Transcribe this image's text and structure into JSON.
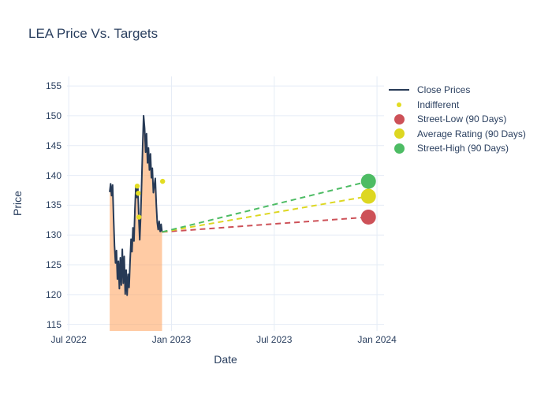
{
  "title": "LEA Price Vs. Targets",
  "colors": {
    "text": "#2a3f5f",
    "grid": "#e5ecf6",
    "close_line": "#273a56",
    "close_fill": "rgba(255,161,90,0.55)",
    "indifferent": "#e2dc22",
    "street_low": "#cd5158",
    "average_rating": "#ddd721",
    "street_high": "#4dbc64",
    "background": "#ffffff"
  },
  "chart_data": {
    "type": "line",
    "title": "LEA Price Vs. Targets",
    "xlabel": "Date",
    "ylabel": "Price",
    "x_axis": {
      "tick_positions_months": [
        0,
        6,
        12,
        18
      ],
      "tick_labels": [
        "Jul 2022",
        "Jan 2023",
        "Jul 2023",
        "Jan 2024"
      ],
      "range_months": [
        -0.1,
        18.41
      ],
      "note": "months measured from Jul 2022"
    },
    "y_axis": {
      "ticks": [
        115,
        120,
        125,
        130,
        135,
        140,
        145,
        150,
        155
      ],
      "range": [
        113.9,
        156.6
      ]
    },
    "grid": true,
    "legend_position": "right-top",
    "series": [
      {
        "name": "Close Prices",
        "type": "line",
        "fill": "tozero",
        "x": [
          2.39,
          2.447,
          2.503,
          2.56,
          2.617,
          2.673,
          2.73,
          2.787,
          2.843,
          2.9,
          2.957,
          3.013,
          3.07,
          3.127,
          3.183,
          3.24,
          3.297,
          3.353,
          3.41,
          3.467,
          3.523,
          3.58,
          3.637,
          3.693,
          3.75,
          3.807,
          3.863,
          3.92,
          3.977,
          4.033,
          4.09,
          4.147,
          4.203,
          4.26,
          4.317,
          4.373,
          4.43,
          4.487,
          4.543,
          4.6,
          4.657,
          4.713,
          4.77,
          4.827,
          4.883,
          4.94,
          4.997,
          5.053,
          5.11,
          5.167,
          5.223,
          5.28,
          5.337,
          5.393,
          5.45
        ],
        "y": [
          137.2,
          138.6,
          136.6,
          138.4,
          133.0,
          128.2,
          125.3,
          127.4,
          122.6,
          125.6,
          121.0,
          126.2,
          121.6,
          127.6,
          121.9,
          126.4,
          120.1,
          124.1,
          119.9,
          123.4,
          121.2,
          125.4,
          129.3,
          127.2,
          131.2,
          129.0,
          134.3,
          138.2,
          136.3,
          138.0,
          133.0,
          129.2,
          133.5,
          139.0,
          144.8,
          150.0,
          147.9,
          143.9,
          147.0,
          142.1,
          144.6,
          140.9,
          143.6,
          139.6,
          141.2,
          137.1,
          138.3,
          139.5,
          135.1,
          132.1,
          130.9,
          132.3,
          130.6,
          131.8,
          130.5
        ]
      },
      {
        "name": "Indifferent",
        "type": "scatter",
        "x": [
          4.0,
          4.06,
          4.1,
          5.48
        ],
        "y": [
          138.2,
          137.0,
          133.0,
          139.0
        ]
      },
      {
        "name": "Street-Low (90 Days)",
        "type": "dashed_target",
        "x": [
          5.45,
          17.5
        ],
        "y": [
          130.5,
          133.0
        ],
        "target_value": 133.0
      },
      {
        "name": "Average Rating (90 Days)",
        "type": "dashed_target",
        "x": [
          5.45,
          17.5
        ],
        "y": [
          130.5,
          136.5
        ],
        "target_value": 136.5
      },
      {
        "name": "Street-High (90 Days)",
        "type": "dashed_target",
        "x": [
          5.45,
          17.5
        ],
        "y": [
          130.5,
          139.0
        ],
        "target_value": 139.0
      }
    ],
    "legend": [
      {
        "label": "Close Prices",
        "marker": "line",
        "color_key": "close_line"
      },
      {
        "label": "Indifferent",
        "marker": "dot-small",
        "color_key": "indifferent"
      },
      {
        "label": "Street-Low (90 Days)",
        "marker": "dot-large",
        "color_key": "street_low"
      },
      {
        "label": "Average Rating (90 Days)",
        "marker": "dot-large",
        "color_key": "average_rating"
      },
      {
        "label": "Street-High (90 Days)",
        "marker": "dot-large",
        "color_key": "street_high"
      }
    ]
  }
}
